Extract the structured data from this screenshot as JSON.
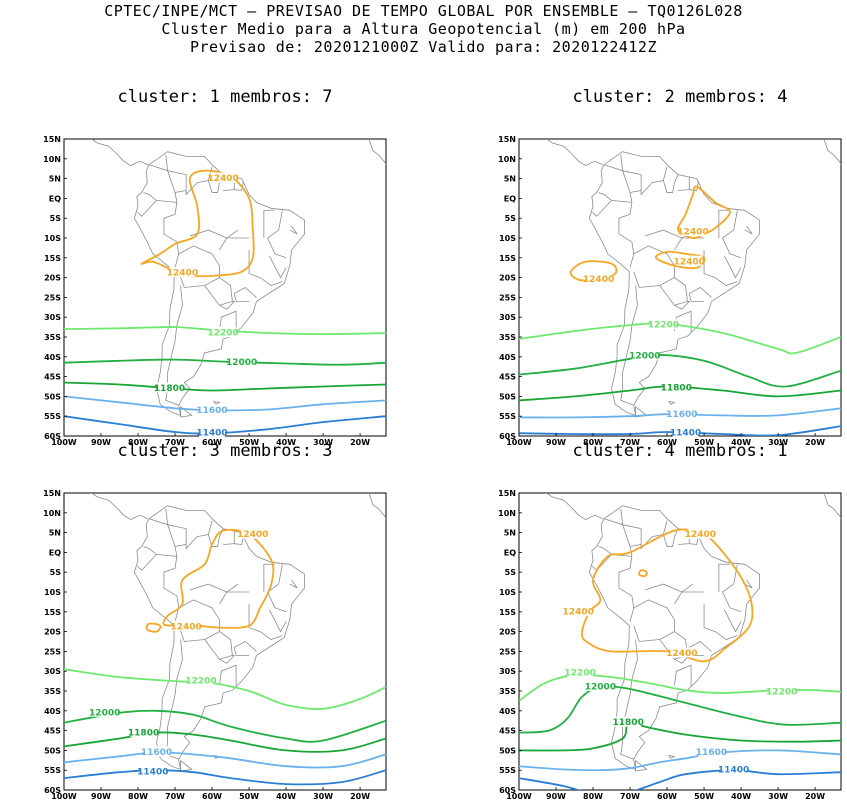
{
  "header": {
    "line1": "CPTEC/INPE/MCT – PREVISAO DE TEMPO GLOBAL POR ENSEMBLE – TQ0126L028",
    "line2": "Cluster Medio para a Altura Geopotencial (m) em 200 hPa",
    "line3": "Previsao de: 2020121000Z    Valido para: 2020122412Z"
  },
  "colors": {
    "c12400": "#f5a623",
    "c12200": "#6fe86f",
    "c12000": "#21b041",
    "c11800": "#17a534",
    "c11600": "#6ab2ee",
    "c11400": "#2a7fd4"
  },
  "axes": {
    "lat_labels": [
      "15N",
      "10N",
      "5N",
      "EQ",
      "5S",
      "10S",
      "15S",
      "20S",
      "25S",
      "30S",
      "35S",
      "40S",
      "45S",
      "50S",
      "55S",
      "60S"
    ],
    "lon_labels": [
      "100W",
      "90W",
      "80W",
      "70W",
      "60W",
      "50W",
      "40W",
      "30W",
      "20W"
    ]
  },
  "panels": [
    {
      "title": "cluster: 1   membros: 7",
      "labels": {
        "l12400a": "12400",
        "l12400b": "12400",
        "l12200": "12200",
        "l12000": "12000",
        "l11800": "11800",
        "l11600": "11600",
        "l11400": "11400"
      }
    },
    {
      "title": "cluster: 2   membros: 4",
      "labels": {
        "l12400a": "12400",
        "l12400b": "12400",
        "l12400c": "12400",
        "l12200": "12200",
        "l12000": "12000",
        "l11800": "11800",
        "l11600": "11600",
        "l11400": "11400"
      }
    },
    {
      "title": "cluster: 3   membros: 3",
      "labels": {
        "l12400a": "12400",
        "l12400b": "12400",
        "l12200": "12200",
        "l12000": "12000",
        "l11800": "11800",
        "l11600": "11600",
        "l11400": "11400"
      }
    },
    {
      "title": "cluster: 4   membros: 1",
      "labels": {
        "l12400a": "12400",
        "l12400b": "12400",
        "l12400c": "12400",
        "l12200a": "12200",
        "l12200b": "12200",
        "l12000": "12000",
        "l11800": "11800",
        "l11600": "11600",
        "l11400": "11400"
      }
    }
  ]
}
